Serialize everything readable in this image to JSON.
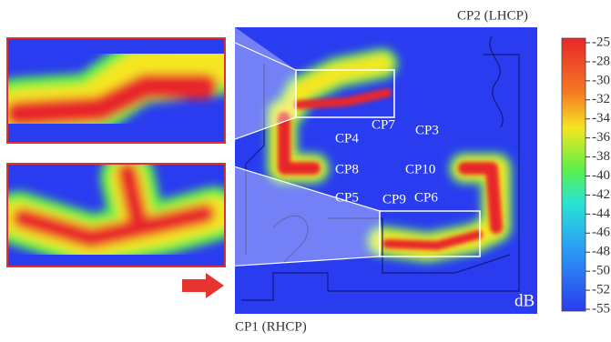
{
  "port_labels": {
    "top": "CP2 (LHCP)",
    "bottom": "CP1 (RHCP)"
  },
  "point_labels": [
    "CP3",
    "CP4",
    "CP5",
    "CP6",
    "CP7",
    "CP8",
    "CP9",
    "CP10"
  ],
  "unit": "dB",
  "colorbar": {
    "ticks": [
      -25,
      -28,
      -30,
      -32,
      -34,
      -36,
      -38,
      -40,
      -42,
      -44,
      -46,
      -48,
      -50,
      -52,
      -55
    ]
  }
}
